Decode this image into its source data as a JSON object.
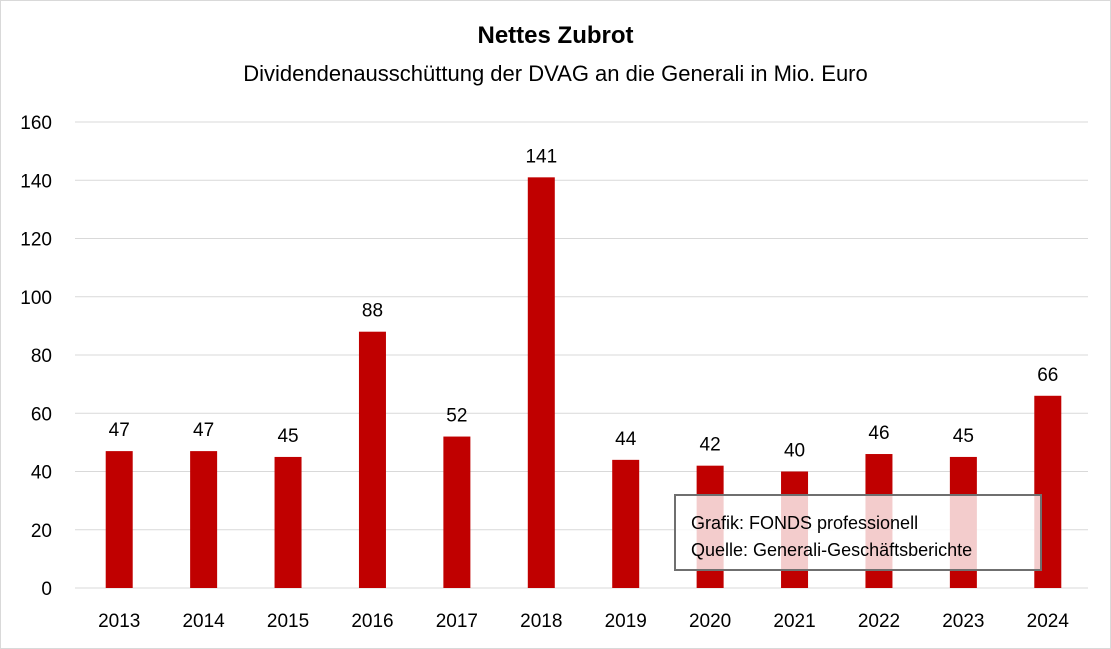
{
  "chart_data": {
    "type": "bar",
    "title": "Nettes Zubrot",
    "subtitle": "Dividendenausschüttung der DVAG an die Generali in Mio. Euro",
    "xlabel": "",
    "ylabel": "",
    "categories": [
      "2013",
      "2014",
      "2015",
      "2016",
      "2017",
      "2018",
      "2019",
      "2020",
      "2021",
      "2022",
      "2023",
      "2024"
    ],
    "values": [
      47,
      47,
      45,
      88,
      52,
      141,
      44,
      42,
      40,
      46,
      45,
      66
    ],
    "data_labels": [
      "47",
      "47",
      "45",
      "88",
      "52",
      "141",
      "44",
      "42",
      "40",
      "46",
      "45",
      "66"
    ],
    "ylim": [
      0,
      160
    ],
    "yticks": [
      0,
      20,
      40,
      60,
      80,
      100,
      120,
      140,
      160
    ],
    "grid": true,
    "legend": "none",
    "bar_color": "#c00000",
    "annotation": {
      "line1": "Grafik: FONDS professionell",
      "line2": "Quelle: Generali-Geschäftsberichte",
      "placement": "bottom-right"
    }
  }
}
